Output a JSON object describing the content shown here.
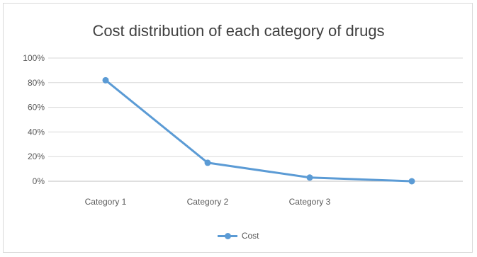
{
  "chart_data": {
    "type": "line",
    "title": "Cost distribution of each category of drugs",
    "xlabel": "",
    "ylabel": "",
    "categories": [
      "Category 1",
      "Category 2",
      "Category 3",
      ""
    ],
    "series": [
      {
        "name": "Cost",
        "values": [
          0.82,
          0.15,
          0.03,
          0.0
        ],
        "color": "#5b9bd5"
      }
    ],
    "yticks": [
      "0%",
      "20%",
      "40%",
      "60%",
      "80%",
      "100%"
    ],
    "ylim": [
      0,
      1
    ],
    "grid": true,
    "legend_position": "bottom",
    "colors": {
      "series": "#5b9bd5",
      "grid": "#d9d9d9",
      "text": "#595959",
      "title": "#3f3f3f"
    }
  }
}
